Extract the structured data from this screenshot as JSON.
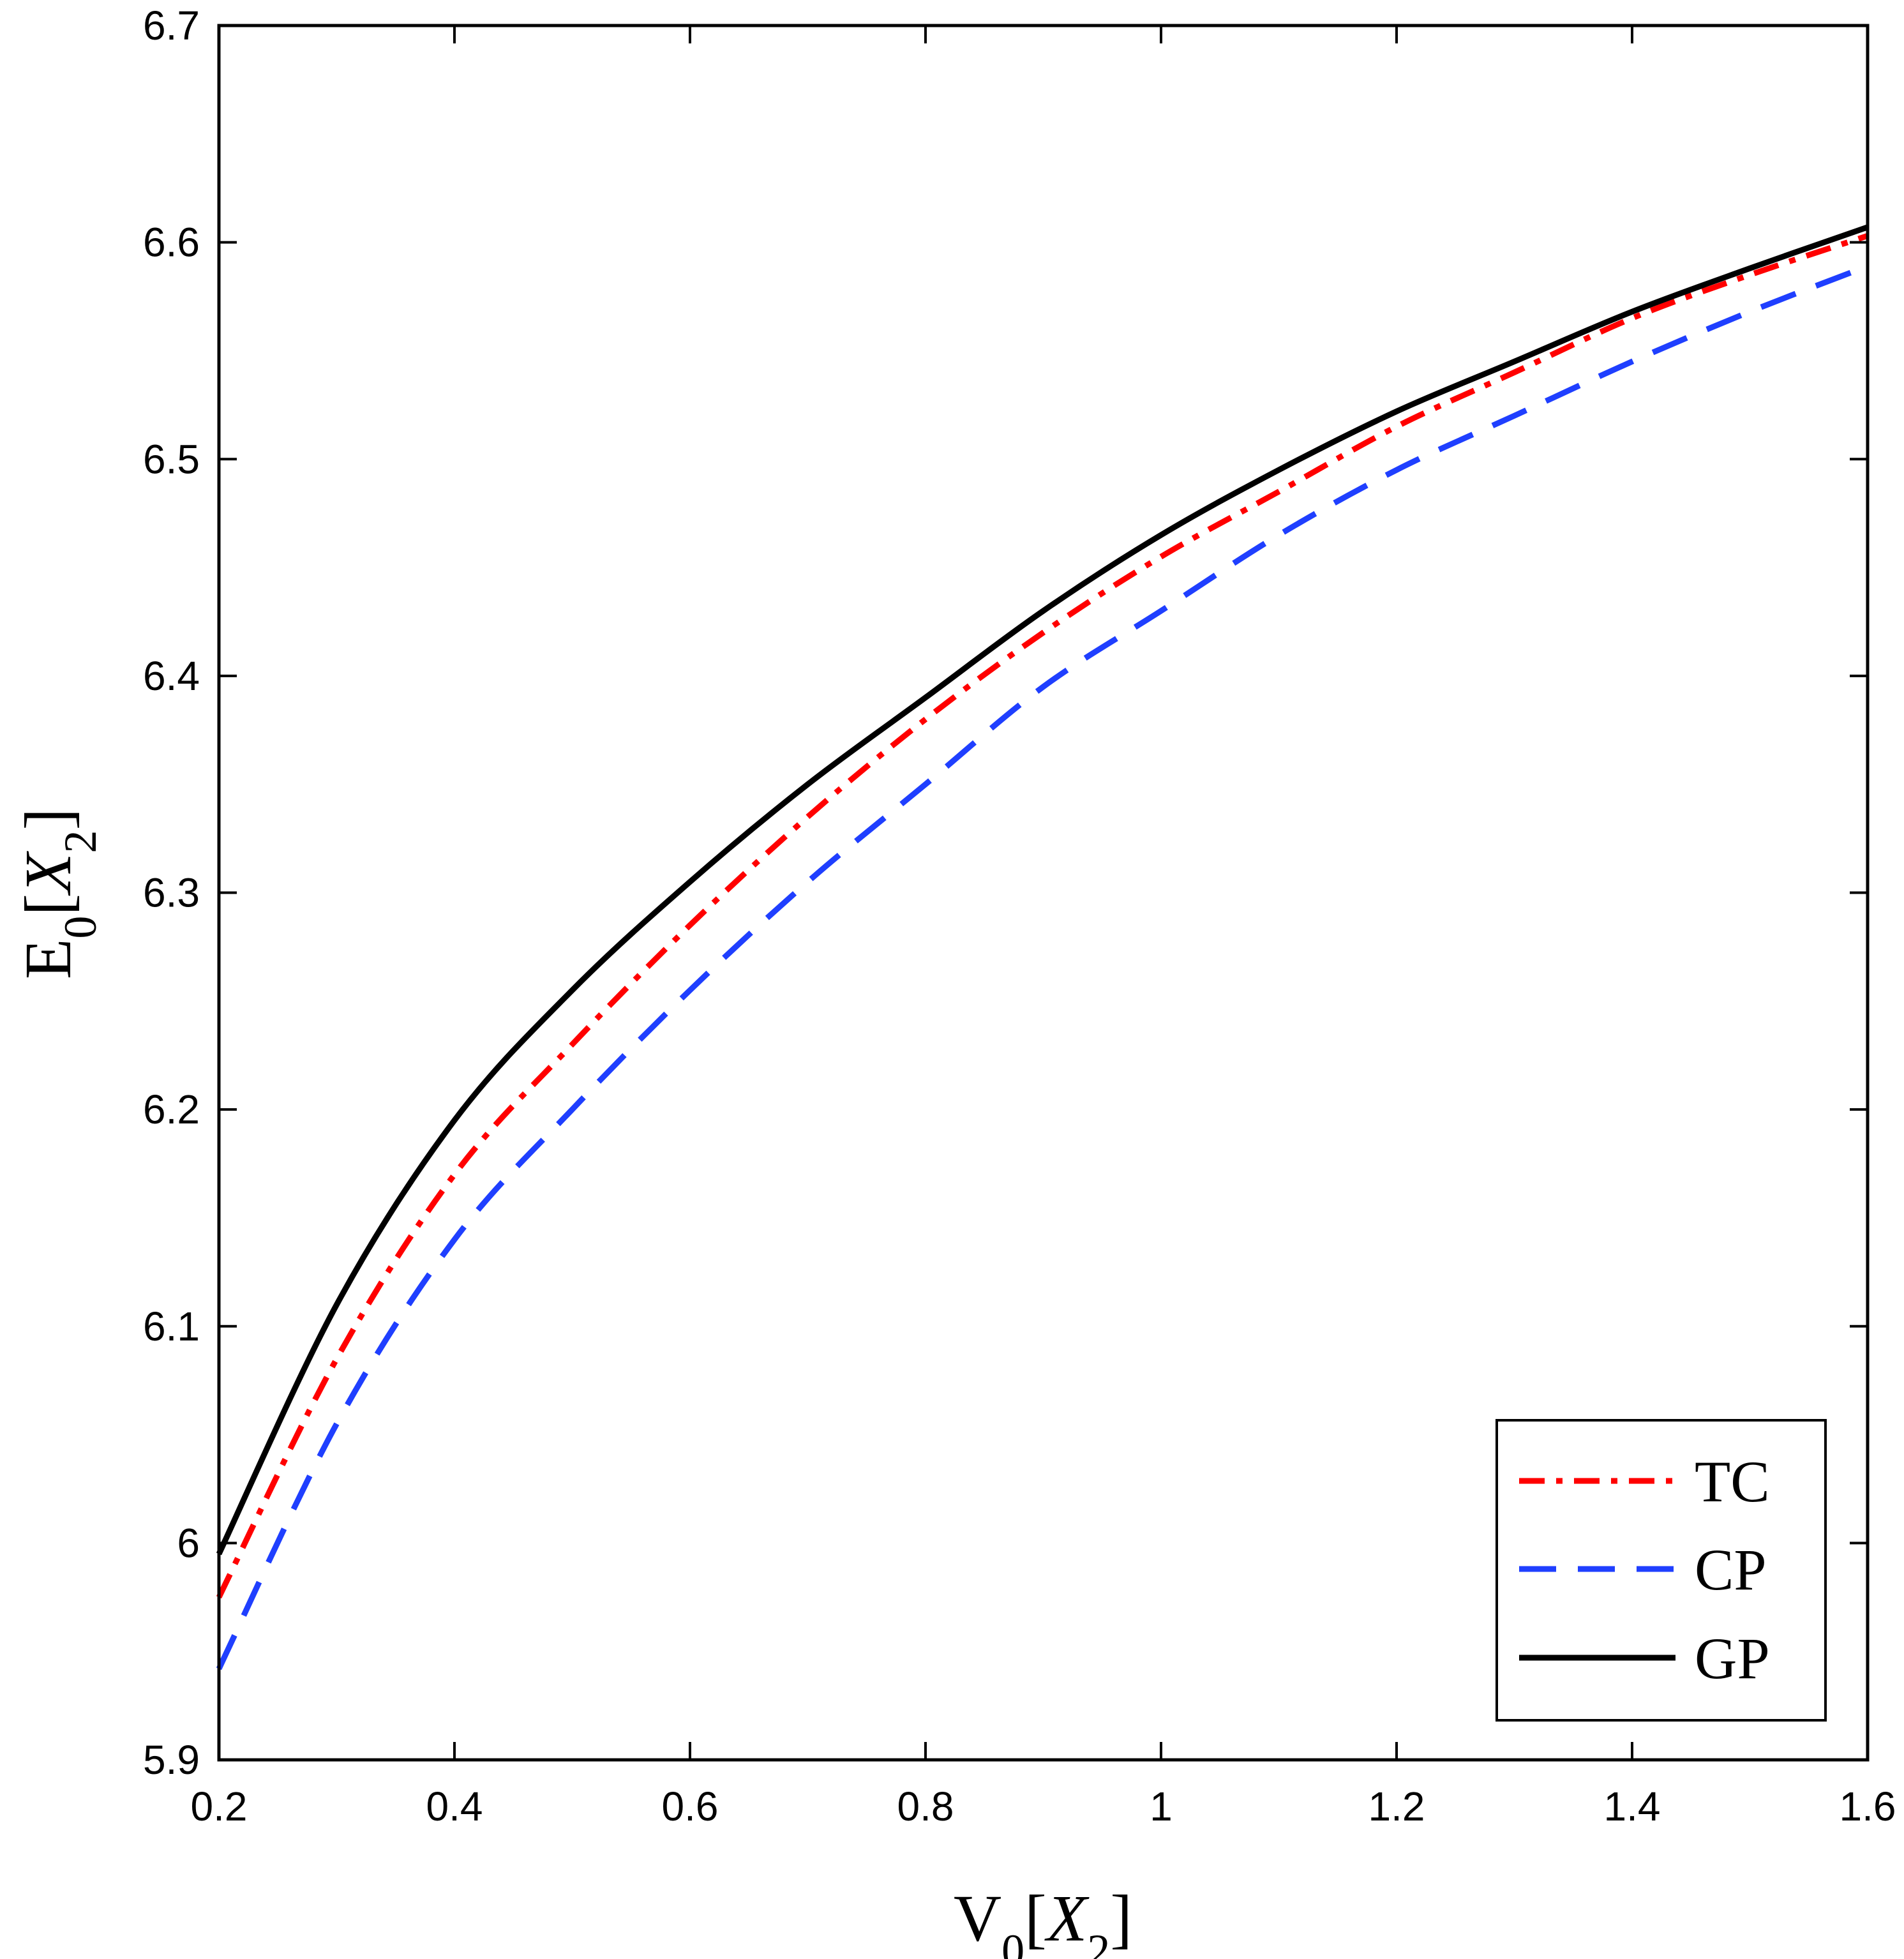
{
  "chart_data": {
    "type": "line",
    "title": "",
    "xlabel": {
      "main": "V",
      "sub": "0",
      "bracket_var": "X",
      "bracket_sub": "2"
    },
    "ylabel": {
      "main": "E",
      "sub": "0",
      "bracket_var": "X",
      "bracket_sub": "2"
    },
    "xlim": [
      0.2,
      1.6
    ],
    "ylim": [
      5.9,
      6.7
    ],
    "x_ticks": [
      0.2,
      0.4,
      0.6,
      0.8,
      1.0,
      1.2,
      1.4,
      1.6
    ],
    "x_tick_labels": [
      "0.2",
      "0.4",
      "0.6",
      "0.8",
      "1",
      "1.2",
      "1.4",
      "1.6"
    ],
    "y_ticks": [
      5.9,
      6.0,
      6.1,
      6.2,
      6.3,
      6.4,
      6.5,
      6.6,
      6.7
    ],
    "y_tick_labels": [
      "5.9",
      "6",
      "6.1",
      "6.2",
      "6.3",
      "6.4",
      "6.5",
      "6.6",
      "6.7"
    ],
    "grid": false,
    "legend_position": "bottom-right",
    "x": [
      0.2,
      0.3,
      0.4,
      0.5,
      0.6,
      0.7,
      0.8,
      0.9,
      1.0,
      1.1,
      1.2,
      1.3,
      1.4,
      1.5,
      1.6
    ],
    "series": [
      {
        "name": "TC",
        "color": "#ff0000",
        "dash": "dash-dot",
        "values": [
          5.975,
          6.085,
          6.17,
          6.23,
          6.285,
          6.335,
          6.38,
          6.42,
          6.455,
          6.485,
          6.515,
          6.54,
          6.565,
          6.585,
          6.603
        ]
      },
      {
        "name": "CP",
        "color": "#1f3fff",
        "dash": "dashed",
        "values": [
          5.942,
          6.055,
          6.14,
          6.2,
          6.255,
          6.305,
          6.35,
          6.395,
          6.43,
          6.465,
          6.495,
          6.52,
          6.545,
          6.568,
          6.589
        ]
      },
      {
        "name": "GP",
        "color": "#000000",
        "dash": "solid",
        "values": [
          5.995,
          6.11,
          6.195,
          6.255,
          6.305,
          6.35,
          6.39,
          6.43,
          6.465,
          6.495,
          6.522,
          6.545,
          6.568,
          6.588,
          6.607
        ]
      }
    ]
  }
}
